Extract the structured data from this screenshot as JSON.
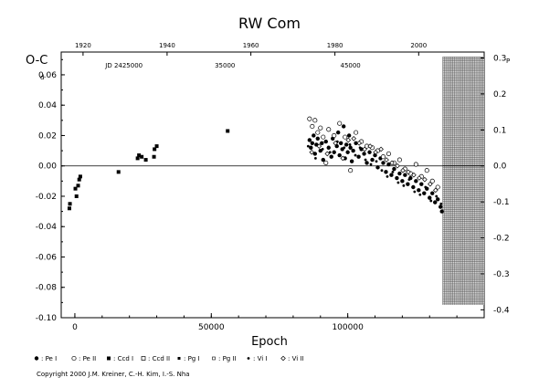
{
  "chart_data": {
    "type": "scatter",
    "title": "RW  Com",
    "xlabel": "Epoch",
    "ylabel": "O-C",
    "ylabel_unit": "d",
    "right_unit": "P",
    "xlim": [
      -5000,
      150000
    ],
    "ylim": [
      -0.1,
      0.075
    ],
    "y_ticks": [
      "0.06",
      "0.04",
      "0.02",
      "0.00",
      "-0.02",
      "-0.04",
      "-0.06",
      "-0.08",
      "-0.10"
    ],
    "x_ticks": [
      "0",
      "50000",
      "100000"
    ],
    "top_year_ticks": [
      "1920",
      "1940",
      "1960",
      "1980",
      "2000"
    ],
    "jd_labels": [
      "JD 2425000",
      "35000",
      "45000"
    ],
    "right_ticks": [
      "0.3",
      "0.2",
      "0.1",
      "0.0",
      "-0.1",
      "-0.2",
      "-0.3",
      "-0.4"
    ],
    "period_days": 0.237,
    "zero_line": true,
    "shaded_region_x": [
      134800,
      150000
    ],
    "legend_items": [
      {
        "label": ": Pe I",
        "marker": "filled-circle"
      },
      {
        "label": ": Pe II",
        "marker": "open-circle"
      },
      {
        "label": ": Ccd I",
        "marker": "filled-square"
      },
      {
        "label": ": Ccd II",
        "marker": "open-square"
      },
      {
        "label": ": Pg I",
        "marker": "filled-square-small"
      },
      {
        "label": ": Pg II",
        "marker": "open-square-small"
      },
      {
        "label": ": Vi I",
        "marker": "dot"
      },
      {
        "label": ": Vi II",
        "marker": "open-diamond"
      }
    ],
    "series": [
      {
        "marker": "filled-square",
        "points": [
          [
            -2000,
            -0.028
          ],
          [
            -1800,
            -0.025
          ],
          [
            200,
            -0.015
          ],
          [
            600,
            -0.02
          ],
          [
            1200,
            -0.013
          ],
          [
            1600,
            -0.009
          ],
          [
            2000,
            -0.007
          ],
          [
            16000,
            -0.004
          ],
          [
            23000,
            0.005
          ],
          [
            23500,
            0.007
          ],
          [
            24500,
            0.006
          ],
          [
            26000,
            0.004
          ],
          [
            29000,
            0.006
          ],
          [
            29200,
            0.011
          ],
          [
            30000,
            0.013
          ],
          [
            56000,
            0.023
          ]
        ]
      },
      {
        "marker": "filled-circle",
        "points": [
          [
            86000,
            0.017
          ],
          [
            86500,
            0.012
          ],
          [
            87000,
            0.015
          ],
          [
            87500,
            0.02
          ],
          [
            88000,
            0.008
          ],
          [
            88500,
            0.014
          ],
          [
            89000,
            0.018
          ],
          [
            90000,
            0.01
          ],
          [
            90500,
            0.015
          ],
          [
            91000,
            0.004
          ],
          [
            92000,
            0.016
          ],
          [
            93000,
            0.012
          ],
          [
            94000,
            0.006
          ],
          [
            94500,
            0.018
          ],
          [
            95000,
            0.009
          ],
          [
            96000,
            0.013
          ],
          [
            96500,
            0.022
          ],
          [
            97000,
            0.007
          ],
          [
            97500,
            0.015
          ],
          [
            98000,
            0.011
          ],
          [
            98500,
            0.026
          ],
          [
            99000,
            0.005
          ],
          [
            99500,
            0.014
          ],
          [
            100000,
            0.009
          ],
          [
            100500,
            0.02
          ],
          [
            101000,
            0.012
          ],
          [
            101500,
            0.003
          ],
          [
            102000,
            0.01
          ],
          [
            103000,
            0.015
          ],
          [
            104000,
            0.006
          ],
          [
            105000,
            0.011
          ],
          [
            106000,
            0.008
          ],
          [
            107000,
            0.002
          ],
          [
            108000,
            0.009
          ],
          [
            109000,
            0.004
          ],
          [
            110000,
            0.007
          ],
          [
            111000,
            -0.001
          ],
          [
            112000,
            0.005
          ],
          [
            113000,
            0.002
          ],
          [
            114000,
            -0.004
          ],
          [
            115000,
            0.001
          ],
          [
            116000,
            -0.006
          ],
          [
            117000,
            -0.002
          ],
          [
            118000,
            -0.008
          ],
          [
            119000,
            -0.005
          ],
          [
            120000,
            -0.01
          ],
          [
            121000,
            -0.006
          ],
          [
            122000,
            -0.012
          ],
          [
            123000,
            -0.008
          ],
          [
            124000,
            -0.014
          ],
          [
            125000,
            -0.01
          ],
          [
            126000,
            -0.016
          ],
          [
            127000,
            -0.012
          ],
          [
            128000,
            -0.018
          ],
          [
            129000,
            -0.015
          ],
          [
            130000,
            -0.021
          ],
          [
            131000,
            -0.018
          ],
          [
            132000,
            -0.024
          ],
          [
            133000,
            -0.022
          ],
          [
            134000,
            -0.027
          ],
          [
            134500,
            -0.03
          ]
        ]
      },
      {
        "marker": "open-circle",
        "points": [
          [
            86000,
            0.031
          ],
          [
            87000,
            0.026
          ],
          [
            88000,
            0.03
          ],
          [
            89000,
            0.022
          ],
          [
            90000,
            0.025
          ],
          [
            91000,
            0.019
          ],
          [
            92000,
            0.002
          ],
          [
            93000,
            0.024
          ],
          [
            95000,
            0.02
          ],
          [
            97000,
            0.028
          ],
          [
            99000,
            0.019
          ],
          [
            101000,
            -0.003
          ],
          [
            103000,
            0.022
          ],
          [
            105000,
            0.016
          ],
          [
            107000,
            0.013
          ],
          [
            109000,
            0.012
          ],
          [
            111000,
            0.01
          ],
          [
            113000,
            0.006
          ],
          [
            115000,
            0.008
          ],
          [
            117000,
            0.002
          ],
          [
            119000,
            0.004
          ],
          [
            121000,
            -0.002
          ],
          [
            123000,
            -0.005
          ],
          [
            125000,
            0.001
          ],
          [
            127000,
            -0.007
          ],
          [
            129000,
            -0.003
          ],
          [
            131000,
            -0.01
          ],
          [
            133000,
            -0.014
          ]
        ]
      },
      {
        "marker": "dot",
        "points": [
          [
            85500,
            0.013
          ],
          [
            88200,
            0.005
          ],
          [
            90800,
            0.011
          ],
          [
            93500,
            0.009
          ],
          [
            96200,
            0.016
          ],
          [
            98700,
            0.012
          ],
          [
            100800,
            0.014
          ],
          [
            102800,
            0.007
          ],
          [
            104500,
            0.012
          ],
          [
            106500,
            0.004
          ],
          [
            108500,
            0.001
          ],
          [
            110500,
            0.003
          ],
          [
            112500,
            -0.003
          ],
          [
            114500,
            -0.007
          ],
          [
            116500,
            -0.004
          ],
          [
            118500,
            -0.011
          ],
          [
            120500,
            -0.013
          ],
          [
            122500,
            -0.009
          ],
          [
            124500,
            -0.017
          ],
          [
            126500,
            -0.019
          ],
          [
            128500,
            -0.014
          ],
          [
            130500,
            -0.023
          ],
          [
            132500,
            -0.02
          ],
          [
            134200,
            -0.025
          ]
        ]
      },
      {
        "marker": "open-diamond",
        "points": [
          [
            86800,
            0.009
          ],
          [
            89500,
            0.013
          ],
          [
            92500,
            0.008
          ],
          [
            95500,
            0.015
          ],
          [
            98200,
            0.005
          ],
          [
            100200,
            0.017
          ],
          [
            102200,
            0.018
          ],
          [
            104200,
            0.015
          ],
          [
            106200,
            0.011
          ],
          [
            108200,
            0.013
          ],
          [
            110200,
            0.009
          ],
          [
            112200,
            0.011
          ],
          [
            114200,
            0.004
          ],
          [
            116200,
            0.002
          ],
          [
            118200,
            0.0
          ],
          [
            120200,
            -0.003
          ],
          [
            122200,
            -0.004
          ],
          [
            124200,
            -0.006
          ],
          [
            126200,
            -0.008
          ],
          [
            128200,
            -0.009
          ],
          [
            130200,
            -0.012
          ],
          [
            132200,
            -0.016
          ]
        ]
      }
    ]
  },
  "copyright": "Copyright 2000 J.M. Kreiner, C.-H. Kim, I.-S. Nha"
}
